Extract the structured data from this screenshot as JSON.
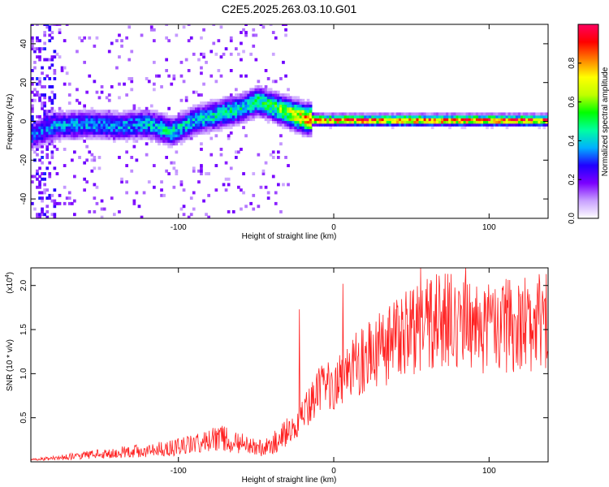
{
  "page_title": "C2E5.2025.263.03.10.G01",
  "chart_data": [
    {
      "type": "heatmap",
      "title": "C2E5.2025.263.03.10.G01",
      "xlabel": "Height of straight line (km)",
      "ylabel": "Frequency (Hz)",
      "xlim": [
        -195,
        138
      ],
      "ylim": [
        -50,
        50
      ],
      "x_ticks": [
        -100,
        0,
        100
      ],
      "x_tick_labels": [
        "-100",
        "0",
        "100"
      ],
      "y_ticks": [
        -40,
        -20,
        0,
        20,
        40
      ],
      "y_tick_labels": [
        "-40",
        "-20",
        "0",
        "20",
        "40"
      ],
      "colorbar": {
        "label": "Normalized spectral amplitude",
        "range": [
          0,
          1
        ],
        "ticks": [
          0.0,
          0.2,
          0.4,
          0.6,
          0.8
        ],
        "tick_labels": [
          "0.0",
          "0.2",
          "0.4",
          "0.6",
          "0.8"
        ],
        "colors": [
          "#ffffff",
          "#c8a0ff",
          "#7b00ff",
          "#2000ff",
          "#00b0ff",
          "#00ffa0",
          "#00ff00",
          "#c0ff00",
          "#ffff00",
          "#ff8000",
          "#ff0000",
          "#ff0060"
        ]
      },
      "ridge": {
        "x": [
          -195,
          -180,
          -160,
          -140,
          -120,
          -105,
          -90,
          -75,
          -60,
          -50,
          -40,
          -30,
          -20,
          -10,
          0,
          50,
          100,
          138
        ],
        "freq_hz": [
          -8,
          -3,
          -2,
          -3,
          -2,
          -6,
          0,
          3,
          6,
          10,
          7,
          4,
          1,
          0,
          0,
          0,
          0,
          0
        ],
        "peak_amplitude": [
          0.35,
          0.4,
          0.4,
          0.4,
          0.45,
          0.5,
          0.45,
          0.5,
          0.5,
          0.55,
          0.6,
          0.7,
          0.9,
          0.95,
          0.95,
          0.95,
          0.95,
          0.95
        ]
      }
    },
    {
      "type": "line",
      "xlabel": "Height of straight line (km)",
      "ylabel": "SNR (10 * v/v)",
      "y_multiplier_label": "(x10",
      "y_multiplier_exp": "4",
      "y_multiplier_close": ")",
      "xlim": [
        -195,
        138
      ],
      "ylim": [
        0,
        22000
      ],
      "x_ticks": [
        -100,
        0,
        100
      ],
      "x_tick_labels": [
        "-100",
        "0",
        "100"
      ],
      "y_ticks": [
        5000,
        10000,
        15000,
        20000
      ],
      "y_tick_labels": [
        "0.5",
        "1.0",
        "1.5",
        "2.0"
      ],
      "color": "#ff2020",
      "trend": {
        "x": [
          -195,
          -170,
          -150,
          -120,
          -100,
          -85,
          -70,
          -55,
          -45,
          -35,
          -25,
          -15,
          -10,
          -5,
          0,
          10,
          20,
          30,
          50,
          60,
          70,
          85,
          100,
          120,
          138
        ],
        "snr": [
          200,
          600,
          900,
          1300,
          1700,
          2200,
          2700,
          1800,
          1500,
          2500,
          4000,
          6500,
          7800,
          8500,
          9000,
          10500,
          11500,
          12800,
          15000,
          15800,
          16000,
          15500,
          15200,
          15600,
          16000
        ]
      },
      "spike_peaks": [
        {
          "x": -22,
          "snr": 17300
        },
        {
          "x": 6,
          "snr": 20200
        },
        {
          "x": 56,
          "snr": 22000
        },
        {
          "x": 85,
          "snr": 22000
        }
      ]
    }
  ]
}
